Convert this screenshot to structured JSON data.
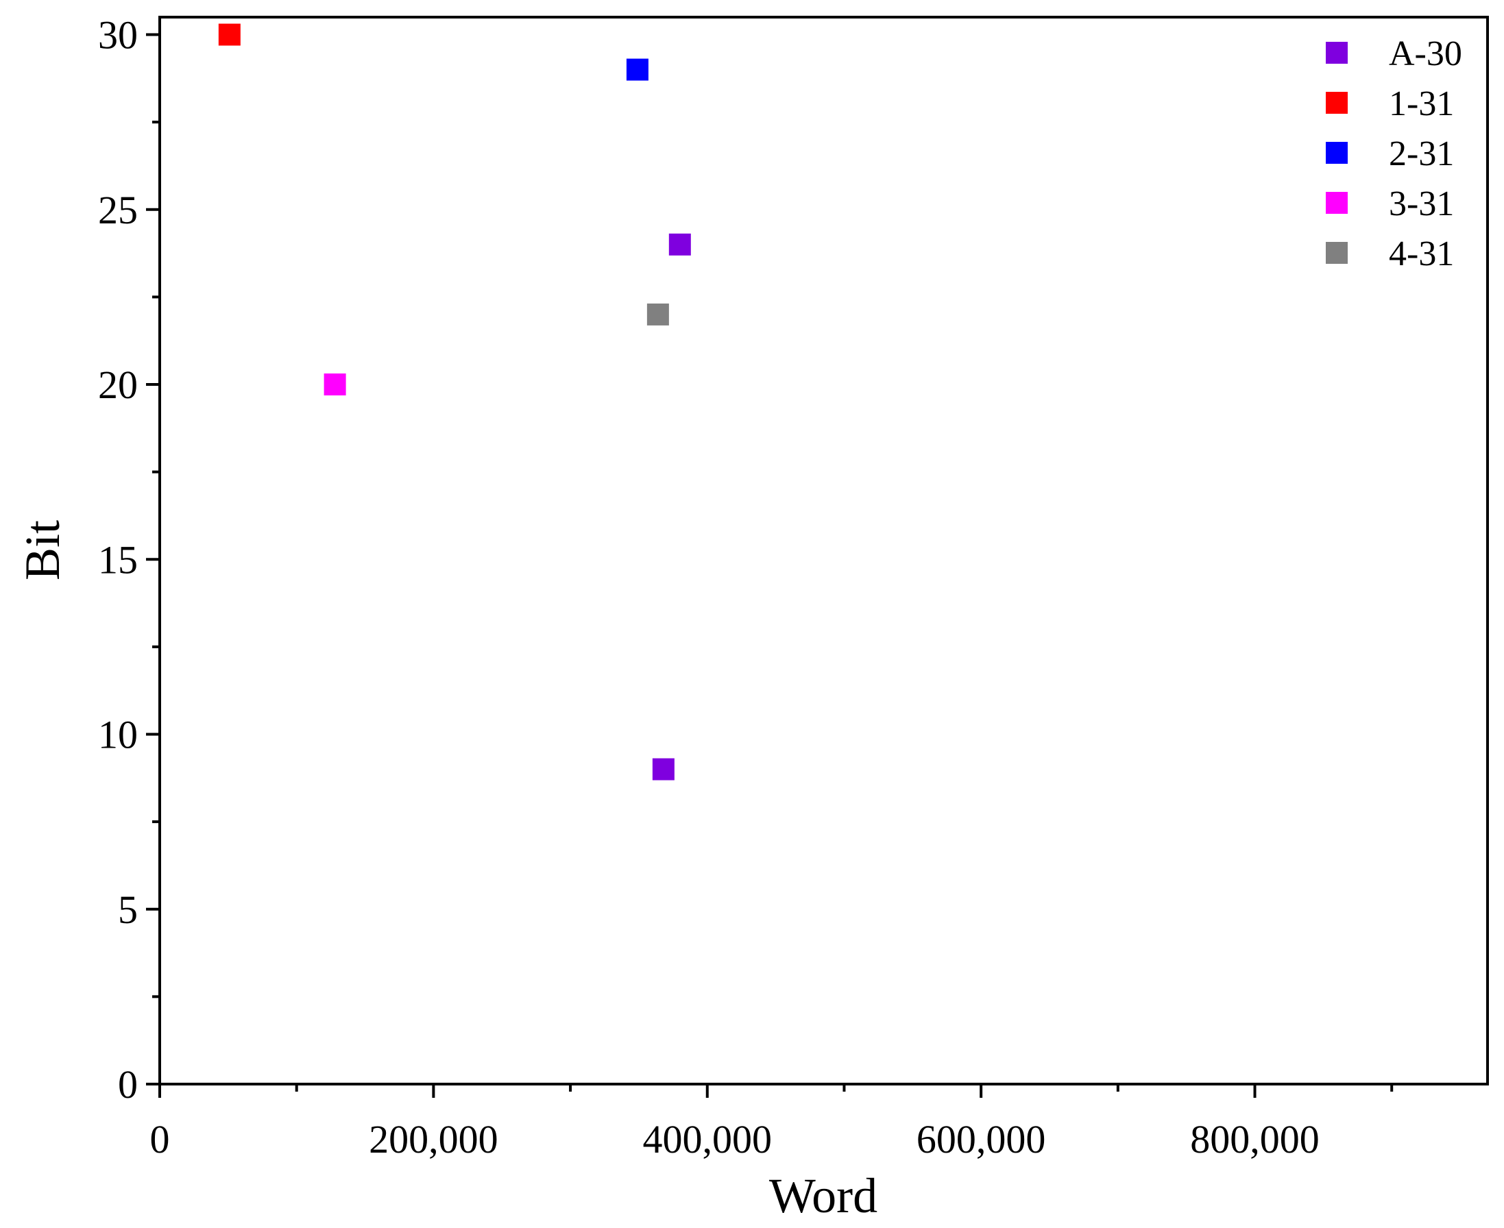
{
  "chart_data": {
    "type": "scatter",
    "title": "",
    "xlabel": "Word",
    "ylabel": "Bit",
    "xlim": [
      0,
      970000
    ],
    "ylim": [
      0,
      30.5
    ],
    "x_ticks": [
      0,
      200000,
      400000,
      600000,
      800000
    ],
    "x_tick_labels": [
      "0",
      "200,000",
      "400,000",
      "600,000",
      "800,000"
    ],
    "x_minor_ticks": [
      100000,
      300000,
      500000,
      700000,
      900000
    ],
    "y_ticks": [
      0,
      5,
      10,
      15,
      20,
      25,
      30
    ],
    "y_tick_labels": [
      "0",
      "5",
      "10",
      "15",
      "20",
      "25",
      "30"
    ],
    "y_minor_ticks": [
      2.5,
      7.5,
      12.5,
      17.5,
      22.5,
      27.5
    ],
    "grid": false,
    "legend_position": "top-right",
    "series": [
      {
        "name": "A-30",
        "color": "#7f00df",
        "marker": "square",
        "points": [
          [
            380000,
            24
          ],
          [
            368000,
            9
          ]
        ]
      },
      {
        "name": "1-31",
        "color": "#ff0000",
        "marker": "square",
        "points": [
          [
            51000,
            30
          ]
        ]
      },
      {
        "name": "2-31",
        "color": "#0000ff",
        "marker": "square",
        "points": [
          [
            349000,
            29
          ]
        ]
      },
      {
        "name": "3-31",
        "color": "#ff00ff",
        "marker": "square",
        "points": [
          [
            128000,
            20
          ]
        ]
      },
      {
        "name": "4-31",
        "color": "#808080",
        "marker": "square",
        "points": [
          [
            364000,
            22
          ]
        ]
      }
    ]
  }
}
